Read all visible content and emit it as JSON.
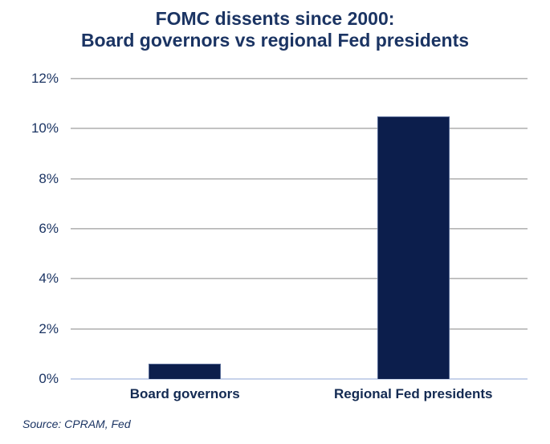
{
  "header": {
    "title_line1": "FOMC dissents since 2000:",
    "title_line2": "Board governors vs regional Fed presidents"
  },
  "footer": {
    "source": "Source: CPRAM, Fed"
  },
  "chart_data": {
    "type": "bar",
    "title": "FOMC dissents since 2000: Board governors vs regional Fed presidents",
    "categories": [
      "Board governors",
      "Regional Fed presidents"
    ],
    "values": [
      0.6,
      10.5
    ],
    "xlabel": "",
    "ylabel": "",
    "ylim": [
      0,
      12
    ],
    "yticks": [
      0,
      2,
      4,
      6,
      8,
      10,
      12
    ],
    "ytick_labels": [
      "0%",
      "2%",
      "4%",
      "6%",
      "8%",
      "10%",
      "12%"
    ],
    "grid": true,
    "legend": false,
    "bar_color": "#0c1e4c",
    "colors": {
      "title_text": "#1b3463",
      "axis_text": "#1b3463",
      "gridline": "#a8a8a8",
      "baseline": "#c7d3ea"
    },
    "source": "Source: CPRAM, Fed"
  }
}
